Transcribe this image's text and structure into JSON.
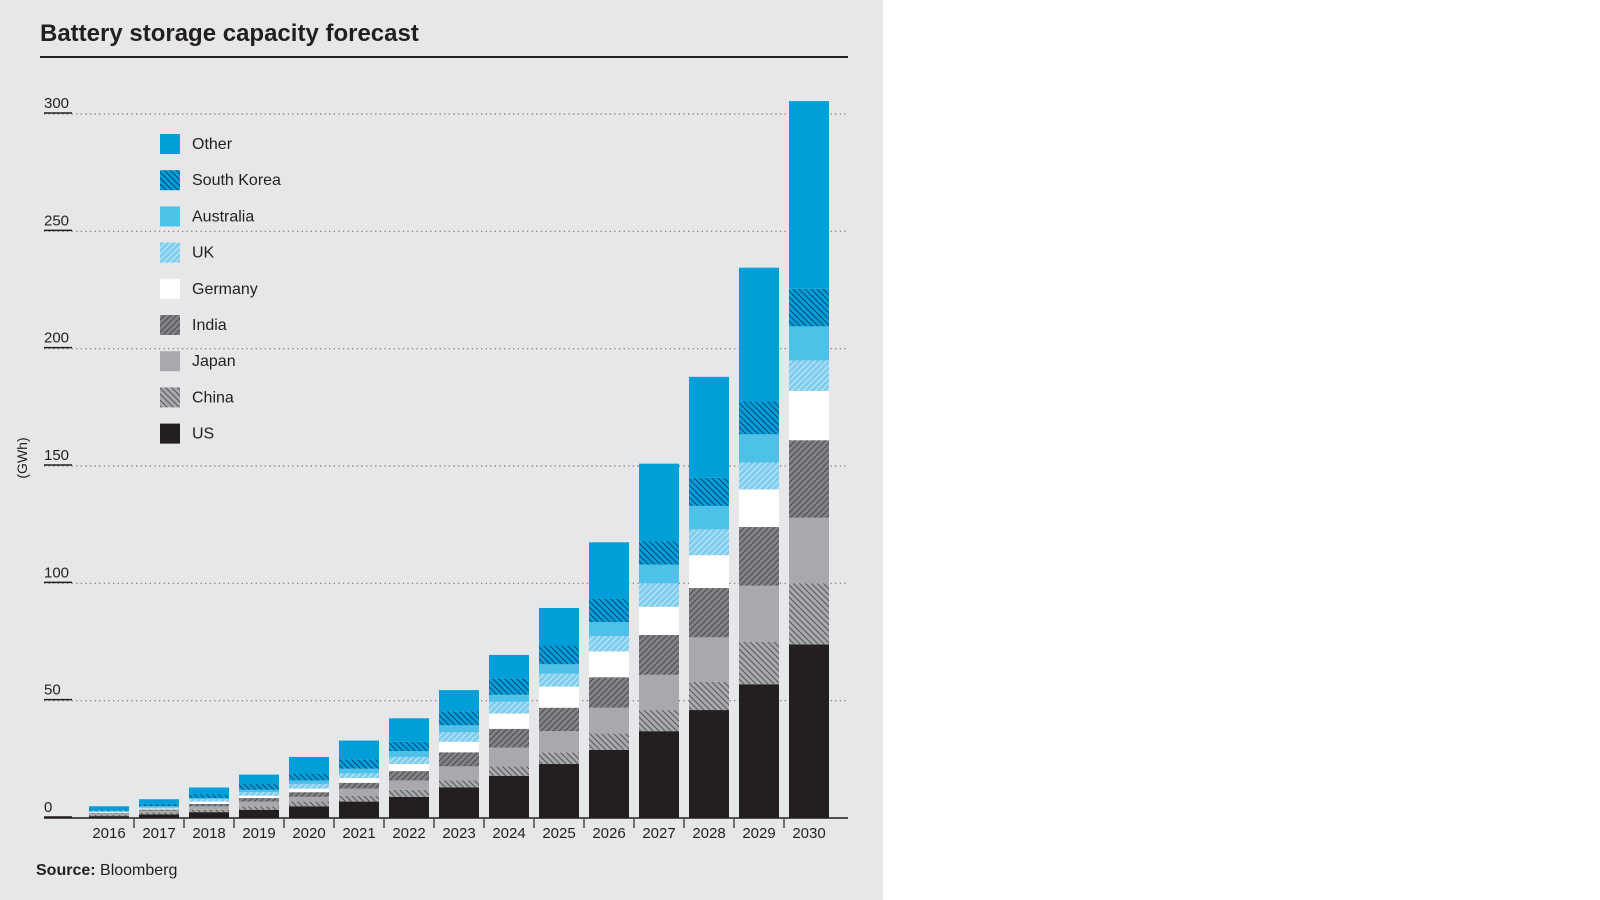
{
  "chart_data": {
    "type": "bar",
    "stacked": true,
    "title": "Battery storage capacity forecast",
    "ylabel": "(GWh)",
    "xlabel": "",
    "ylim": [
      0,
      300
    ],
    "yticks": [
      0,
      50,
      100,
      150,
      200,
      250,
      300
    ],
    "grid": true,
    "legend_position": "top-left",
    "categories": [
      "2016",
      "2017",
      "2018",
      "2019",
      "2020",
      "2021",
      "2022",
      "2023",
      "2024",
      "2025",
      "2026",
      "2027",
      "2028",
      "2029",
      "2030"
    ],
    "series": [
      {
        "name": "US",
        "color": "#231f20",
        "pattern": "solid",
        "values": [
          0.8,
          1.5,
          2.5,
          3.5,
          5,
          7,
          9,
          13,
          18,
          23,
          29,
          37,
          46,
          57,
          74
        ]
      },
      {
        "name": "China",
        "color": "#a7a9ac",
        "pattern": "hatch-back",
        "values": [
          0.5,
          0.8,
          1.0,
          1.5,
          2,
          2.5,
          3,
          3,
          4,
          5,
          7,
          9,
          12,
          18,
          26
        ]
      },
      {
        "name": "Japan",
        "color": "#a7a9ac",
        "pattern": "solid",
        "values": [
          0.5,
          0.8,
          1.5,
          2,
          2,
          3,
          4,
          6,
          8,
          9,
          11,
          15,
          19,
          24,
          28
        ]
      },
      {
        "name": "India",
        "color": "#808285",
        "pattern": "hatch-forward",
        "values": [
          0.3,
          0.5,
          1.0,
          1.5,
          2,
          2.5,
          4,
          6,
          8,
          10,
          13,
          17,
          21,
          25,
          33
        ]
      },
      {
        "name": "Germany",
        "color": "#ffffff",
        "pattern": "solid",
        "values": [
          0.3,
          0.4,
          1.0,
          1.0,
          1.5,
          2,
          3,
          4.5,
          6.5,
          9,
          11,
          12,
          14,
          16,
          21
        ]
      },
      {
        "name": "UK",
        "color": "#7fcdee",
        "pattern": "hatch-forward",
        "values": [
          0.4,
          0.5,
          1.0,
          1.5,
          2,
          2,
          3,
          4,
          5,
          5.5,
          6.5,
          10,
          11,
          11.5,
          13
        ]
      },
      {
        "name": "Australia",
        "color": "#4ec1e8",
        "pattern": "solid",
        "values": [
          0.3,
          0.5,
          0.5,
          1.0,
          1.5,
          2,
          2.5,
          3,
          3,
          4,
          6,
          8,
          10,
          12,
          14.5
        ]
      },
      {
        "name": "South Korea",
        "color": "#009fda",
        "pattern": "hatch-back",
        "values": [
          0.5,
          1.0,
          1.5,
          2.5,
          3,
          4,
          4,
          6,
          7,
          8,
          10,
          10,
          12,
          14,
          16
        ]
      },
      {
        "name": "Other",
        "color": "#009fda",
        "pattern": "solid",
        "values": [
          1.4,
          2.0,
          3.0,
          4.0,
          7,
          8,
          10,
          9,
          10,
          16,
          24,
          33,
          43,
          57,
          80
        ]
      }
    ]
  },
  "source": {
    "label": "Source:",
    "text": "Bloomberg"
  }
}
